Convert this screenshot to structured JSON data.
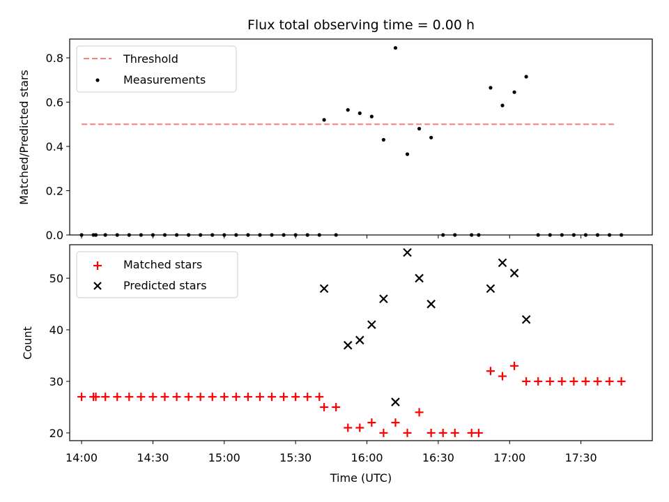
{
  "chart_data": [
    {
      "type": "scatter",
      "title": "Flux total observing time = 0.00 h",
      "ylabel": "Matched/Predicted stars",
      "xlabel": "",
      "xlim": [
        "13:55",
        "18:00"
      ],
      "ylim": [
        0,
        0.885
      ],
      "yticks": [
        "0.0",
        "0.2",
        "0.4",
        "0.6",
        "0.8"
      ],
      "legend": "top-left",
      "series": [
        {
          "name": "Threshold",
          "kind": "dashed-line",
          "color": "#ff7f7f",
          "x": [
            "14:00",
            "17:45"
          ],
          "y": [
            0.5,
            0.5
          ]
        },
        {
          "name": "Measurements",
          "kind": "dot",
          "color": "#000000",
          "x": [
            "14:00",
            "14:05",
            "14:06",
            "14:10",
            "14:15",
            "14:20",
            "14:25",
            "14:30",
            "14:35",
            "14:40",
            "14:45",
            "14:50",
            "14:55",
            "15:00",
            "15:05",
            "15:10",
            "15:15",
            "15:20",
            "15:25",
            "15:30",
            "15:35",
            "15:40",
            "15:42",
            "15:47",
            "15:52",
            "15:57",
            "16:02",
            "16:07",
            "16:12",
            "16:17",
            "16:22",
            "16:27",
            "16:32",
            "16:37",
            "16:44",
            "16:47",
            "16:52",
            "16:57",
            "17:02",
            "17:07",
            "17:12",
            "17:17",
            "17:22",
            "17:27",
            "17:32",
            "17:37",
            "17:42",
            "17:47"
          ],
          "y": [
            0,
            0,
            0,
            0,
            0,
            0,
            0,
            0,
            0,
            0,
            0,
            0,
            0,
            0,
            0,
            0,
            0,
            0,
            0,
            0,
            0,
            0,
            0.52,
            0,
            0.565,
            0.55,
            0.535,
            0.43,
            0.845,
            0.365,
            0.48,
            0.44,
            0,
            0,
            0,
            0,
            0.665,
            0.585,
            0.645,
            0.715,
            0,
            0,
            0,
            0,
            0,
            0,
            0,
            0
          ]
        }
      ]
    },
    {
      "type": "scatter",
      "title": "",
      "ylabel": "Count",
      "xlabel": "Time (UTC)",
      "xlim": [
        "13:55",
        "18:00"
      ],
      "ylim": [
        18.5,
        56.5
      ],
      "yticks": [
        "20",
        "30",
        "40",
        "50"
      ],
      "xticks": [
        "14:00",
        "14:30",
        "15:00",
        "15:30",
        "16:00",
        "16:30",
        "17:00",
        "17:30"
      ],
      "legend": "top-left",
      "series": [
        {
          "name": "Matched stars",
          "kind": "plus",
          "color": "#ff0000",
          "x": [
            "14:00",
            "14:05",
            "14:06",
            "14:10",
            "14:15",
            "14:20",
            "14:25",
            "14:30",
            "14:35",
            "14:40",
            "14:45",
            "14:50",
            "14:55",
            "15:00",
            "15:05",
            "15:10",
            "15:15",
            "15:20",
            "15:25",
            "15:30",
            "15:35",
            "15:40",
            "15:42",
            "15:47",
            "15:52",
            "15:57",
            "16:02",
            "16:07",
            "16:12",
            "16:17",
            "16:22",
            "16:27",
            "16:32",
            "16:37",
            "16:44",
            "16:47",
            "16:52",
            "16:57",
            "17:02",
            "17:07",
            "17:12",
            "17:17",
            "17:22",
            "17:27",
            "17:32",
            "17:37",
            "17:42",
            "17:47"
          ],
          "y": [
            27,
            27,
            27,
            27,
            27,
            27,
            27,
            27,
            27,
            27,
            27,
            27,
            27,
            27,
            27,
            27,
            27,
            27,
            27,
            27,
            27,
            27,
            25,
            25,
            21,
            21,
            22,
            20,
            22,
            20,
            24,
            20,
            20,
            20,
            20,
            20,
            32,
            31,
            33,
            30,
            30,
            30,
            30,
            30,
            30,
            30,
            30,
            30
          ]
        },
        {
          "name": "Predicted stars",
          "kind": "x",
          "color": "#000000",
          "x": [
            "15:42",
            "15:52",
            "15:57",
            "16:02",
            "16:07",
            "16:12",
            "16:17",
            "16:22",
            "16:27",
            "16:52",
            "16:57",
            "17:02",
            "17:07"
          ],
          "y": [
            48,
            37,
            38,
            41,
            46,
            26,
            55,
            50,
            45,
            48,
            53,
            51,
            42
          ]
        }
      ]
    }
  ]
}
